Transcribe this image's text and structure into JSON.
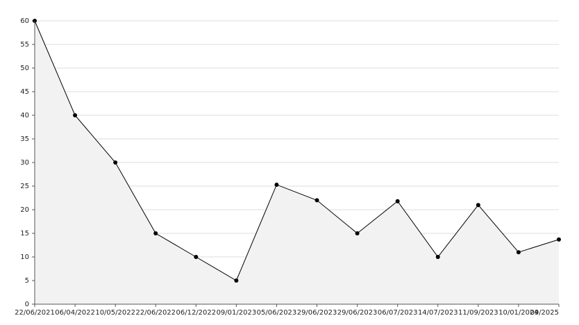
{
  "chart_data": {
    "type": "line",
    "categories": [
      "22/06/2021",
      "06/04/2022",
      "10/05/2022",
      "22/06/2022",
      "06/12/2022",
      "09/01/2023",
      "05/06/2023",
      "29/06/2023",
      "29/06/2023",
      "06/07/2023",
      "14/07/2023",
      "11/09/2023",
      "10/01/2024",
      "09/2025"
    ],
    "values": [
      60,
      40,
      30,
      15,
      10,
      5,
      25.3,
      22,
      15,
      21.8,
      10,
      21,
      11,
      13.7
    ],
    "color": "#000000",
    "fill": "#f2f2f2",
    "ylim": [
      0,
      60
    ],
    "yticks": [
      0,
      5,
      10,
      15,
      20,
      25,
      30,
      35,
      40,
      45,
      50,
      55,
      60
    ],
    "grid": true
  }
}
